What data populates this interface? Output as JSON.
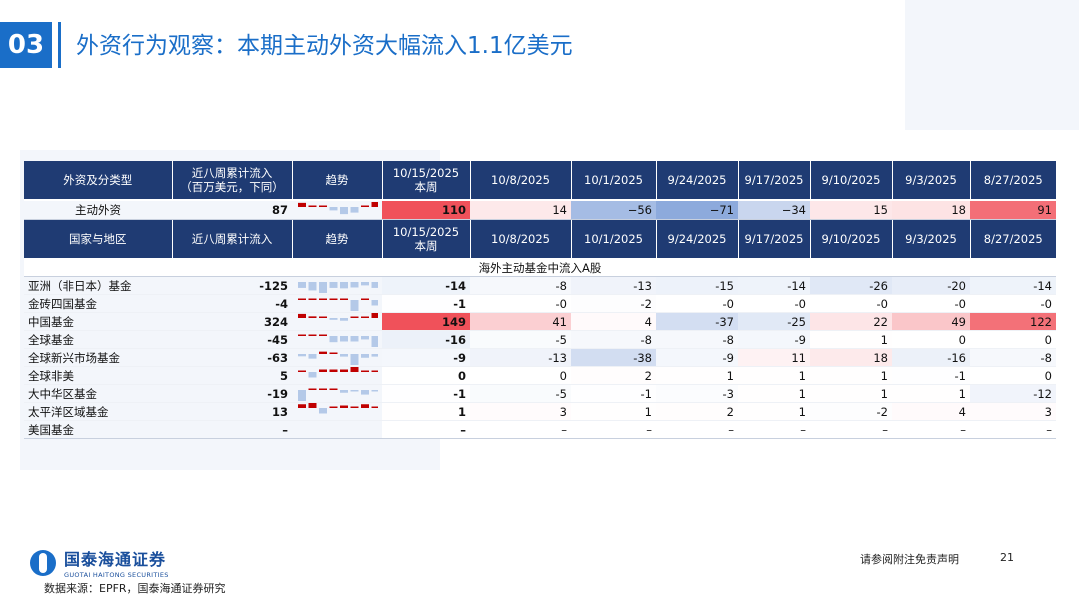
{
  "section": {
    "number": "03",
    "title": "外资行为观察：本期主动外资大幅流入1.1亿美元"
  },
  "header1": [
    "外资及分类型",
    "近八周累计流入\n（百万美元，下同）",
    "趋势",
    "10/15/2025\n本周",
    "10/8/2025",
    "10/1/2025",
    "9/24/2025",
    "9/17/2025",
    "9/10/2025",
    "9/3/2025",
    "8/27/2025"
  ],
  "active": {
    "name": "主动外资",
    "total": "87",
    "weekly": [
      "110",
      "14",
      "−56",
      "−71",
      "−34",
      "15",
      "18",
      "91"
    ],
    "values": [
      110,
      14,
      -56,
      -71,
      -34,
      15,
      18,
      91
    ],
    "trend": [
      91,
      18,
      15,
      -34,
      -71,
      -56,
      14,
      110
    ]
  },
  "header2": [
    "国家与地区",
    "近八周累计流入",
    "趋势",
    "10/15/2025\n本周",
    "10/8/2025",
    "10/1/2025",
    "9/24/2025",
    "9/17/2025",
    "9/10/2025",
    "9/3/2025",
    "8/27/2025"
  ],
  "subheader": "海外主动基金中流入A股",
  "rows": [
    {
      "name": "亚洲（非日本）基金",
      "total": "-125",
      "weekly": [
        "-14",
        "-8",
        "-13",
        "-15",
        "-14",
        "-26",
        "-20",
        "-14"
      ],
      "values": [
        -14,
        -8,
        -13,
        -15,
        -14,
        -26,
        -20,
        -14
      ],
      "trend": [
        -14,
        -20,
        -26,
        -14,
        -15,
        -13,
        -8,
        -14
      ]
    },
    {
      "name": "金砖四国基金",
      "total": "-4",
      "weekly": [
        "-1",
        "-0",
        "-2",
        "-0",
        "-0",
        "-0",
        "-0",
        "-0"
      ],
      "values": [
        -1,
        0,
        -2,
        0,
        0,
        0,
        0,
        0
      ],
      "trend": [
        0,
        0,
        0,
        0,
        0,
        -2,
        0,
        -1
      ]
    },
    {
      "name": "中国基金",
      "total": "324",
      "weekly": [
        "149",
        "41",
        "4",
        "-37",
        "-25",
        "22",
        "49",
        "122"
      ],
      "values": [
        149,
        41,
        4,
        -37,
        -25,
        22,
        49,
        122
      ],
      "trend": [
        122,
        49,
        22,
        -25,
        -37,
        4,
        41,
        149
      ]
    },
    {
      "name": "全球基金",
      "total": "-45",
      "weekly": [
        "-16",
        "-5",
        "-8",
        "-8",
        "-9",
        "1",
        "0",
        "0"
      ],
      "values": [
        -16,
        -5,
        -8,
        -8,
        -9,
        1,
        0,
        0
      ],
      "trend": [
        0,
        0,
        1,
        -9,
        -8,
        -8,
        -5,
        -16
      ]
    },
    {
      "name": "全球新兴市场基金",
      "total": "-63",
      "weekly": [
        "-9",
        "-13",
        "-38",
        "-9",
        "11",
        "18",
        "-16",
        "-8"
      ],
      "values": [
        -9,
        -13,
        -38,
        -9,
        11,
        18,
        -16,
        -8
      ],
      "trend": [
        -8,
        -16,
        18,
        11,
        -9,
        -38,
        -13,
        -9
      ]
    },
    {
      "name": "全球非美",
      "total": "5",
      "weekly": [
        "0",
        "0",
        "2",
        "1",
        "1",
        "1",
        "-1",
        "0"
      ],
      "values": [
        0,
        0,
        2,
        1,
        1,
        1,
        -1,
        0
      ],
      "trend": [
        0,
        -1,
        1,
        1,
        1,
        2,
        0,
        0
      ]
    },
    {
      "name": "大中华区基金",
      "total": "-19",
      "weekly": [
        "-1",
        "-5",
        "-1",
        "-3",
        "1",
        "1",
        "1",
        "-12"
      ],
      "values": [
        -1,
        -5,
        -1,
        -3,
        1,
        1,
        1,
        -12
      ],
      "trend": [
        -12,
        1,
        1,
        1,
        -3,
        -1,
        -5,
        -1
      ]
    },
    {
      "name": "太平洋区域基金",
      "total": "13",
      "weekly": [
        "1",
        "3",
        "1",
        "2",
        "1",
        "-2",
        "4",
        "3"
      ],
      "values": [
        1,
        3,
        1,
        2,
        1,
        -2,
        4,
        3
      ],
      "trend": [
        3,
        4,
        -2,
        1,
        2,
        1,
        3,
        1
      ]
    },
    {
      "name": "美国基金",
      "total": "–",
      "weekly": [
        "–",
        "–",
        "–",
        "–",
        "–",
        "–",
        "–",
        "–"
      ],
      "values": [
        null,
        null,
        null,
        null,
        null,
        null,
        null,
        null
      ],
      "trend": []
    }
  ],
  "colors": {
    "header_bg": "#1f3b73",
    "accent": "#1a6ec8",
    "positive": "#f0515a",
    "negative": "#4f7bc9"
  },
  "footer": {
    "logo_cn": "国泰海通证券",
    "logo_en": "GUOTAI HAITONG SECURITIES",
    "disclaimer": "请参阅附注免责声明",
    "page": "21",
    "source": "数据来源：EPFR，国泰海通证券研究"
  }
}
